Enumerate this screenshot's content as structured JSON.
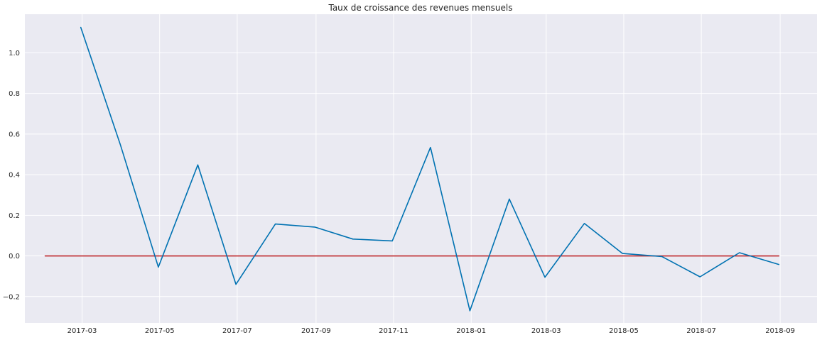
{
  "chart_data": {
    "type": "line",
    "title": "Taux de croissance des revenues mensuels",
    "xlabel": "",
    "ylabel": "",
    "x_domain": [
      "2017-01-15",
      "2018-09-30"
    ],
    "ylim": [
      -0.33,
      1.19
    ],
    "x_ticks": [
      "2017-03",
      "2017-05",
      "2017-07",
      "2017-09",
      "2017-11",
      "2018-01",
      "2018-03",
      "2018-05",
      "2018-07",
      "2018-09"
    ],
    "y_ticks": [
      -0.2,
      0.0,
      0.2,
      0.4,
      0.6,
      0.8,
      1.0
    ],
    "y_tick_labels": [
      "−0.2",
      "0.0",
      "0.2",
      "0.4",
      "0.6",
      "0.8",
      "1.0"
    ],
    "grid": true,
    "background": "#eaeaf2",
    "series": [
      {
        "color": "#0072b2",
        "x": [
          "2017-02-28",
          "2017-03-31",
          "2017-04-30",
          "2017-05-31",
          "2017-06-30",
          "2017-07-31",
          "2017-08-31",
          "2017-09-30",
          "2017-10-31",
          "2017-11-30",
          "2017-12-31",
          "2018-01-31",
          "2018-02-28",
          "2018-03-31",
          "2018-04-30",
          "2018-05-31",
          "2018-06-30",
          "2018-07-31",
          "2018-08-31"
        ],
        "values": [
          1.125,
          0.55,
          -0.055,
          0.448,
          -0.14,
          0.157,
          0.142,
          0.083,
          0.074,
          0.534,
          -0.27,
          0.28,
          -0.105,
          0.16,
          0.012,
          -0.003,
          -0.103,
          0.016,
          -0.042
        ]
      },
      {
        "color": "#c0282d",
        "x": [
          "2017-01-31",
          "2018-08-31"
        ],
        "values": [
          0.0,
          0.0
        ]
      }
    ]
  }
}
